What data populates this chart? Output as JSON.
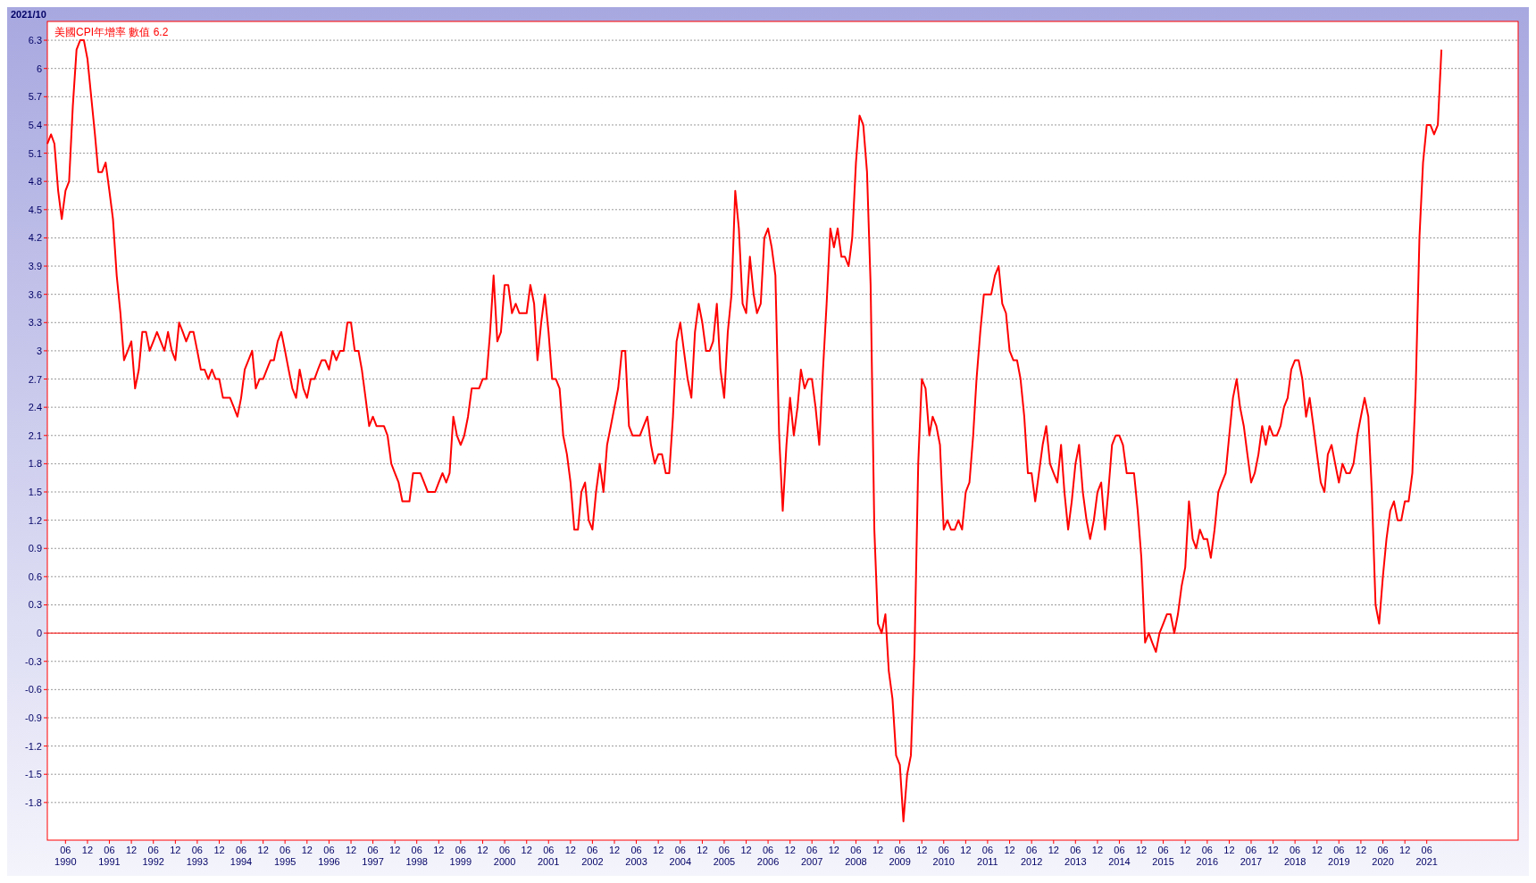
{
  "chart_data": {
    "type": "line",
    "title": "美國CPI年增率 數值 6.2",
    "annotations": [
      "2021/10"
    ],
    "x": [
      "1990-01",
      "1990-02",
      "1990-03",
      "1990-04",
      "1990-05",
      "1990-06",
      "1990-07",
      "1990-08",
      "1990-09",
      "1990-10",
      "1990-11",
      "1990-12",
      "1991-01",
      "1991-02",
      "1991-03",
      "1991-04",
      "1991-05",
      "1991-06",
      "1991-07",
      "1991-08",
      "1991-09",
      "1991-10",
      "1991-11",
      "1991-12",
      "1992-01",
      "1992-02",
      "1992-03",
      "1992-04",
      "1992-05",
      "1992-06",
      "1992-07",
      "1992-08",
      "1992-09",
      "1992-10",
      "1992-11",
      "1992-12",
      "1993-01",
      "1993-02",
      "1993-03",
      "1993-04",
      "1993-05",
      "1993-06",
      "1993-07",
      "1993-08",
      "1993-09",
      "1993-10",
      "1993-11",
      "1993-12",
      "1994-01",
      "1994-02",
      "1994-03",
      "1994-04",
      "1994-05",
      "1994-06",
      "1994-07",
      "1994-08",
      "1994-09",
      "1994-10",
      "1994-11",
      "1994-12",
      "1995-01",
      "1995-02",
      "1995-03",
      "1995-04",
      "1995-05",
      "1995-06",
      "1995-07",
      "1995-08",
      "1995-09",
      "1995-10",
      "1995-11",
      "1995-12",
      "1996-01",
      "1996-02",
      "1996-03",
      "1996-04",
      "1996-05",
      "1996-06",
      "1996-07",
      "1996-08",
      "1996-09",
      "1996-10",
      "1996-11",
      "1996-12",
      "1997-01",
      "1997-02",
      "1997-03",
      "1997-04",
      "1997-05",
      "1997-06",
      "1997-07",
      "1997-08",
      "1997-09",
      "1997-10",
      "1997-11",
      "1997-12",
      "1998-01",
      "1998-02",
      "1998-03",
      "1998-04",
      "1998-05",
      "1998-06",
      "1998-07",
      "1998-08",
      "1998-09",
      "1998-10",
      "1998-11",
      "1998-12",
      "1999-01",
      "1999-02",
      "1999-03",
      "1999-04",
      "1999-05",
      "1999-06",
      "1999-07",
      "1999-08",
      "1999-09",
      "1999-10",
      "1999-11",
      "1999-12",
      "2000-01",
      "2000-02",
      "2000-03",
      "2000-04",
      "2000-05",
      "2000-06",
      "2000-07",
      "2000-08",
      "2000-09",
      "2000-10",
      "2000-11",
      "2000-12",
      "2001-01",
      "2001-02",
      "2001-03",
      "2001-04",
      "2001-05",
      "2001-06",
      "2001-07",
      "2001-08",
      "2001-09",
      "2001-10",
      "2001-11",
      "2001-12",
      "2002-01",
      "2002-02",
      "2002-03",
      "2002-04",
      "2002-05",
      "2002-06",
      "2002-07",
      "2002-08",
      "2002-09",
      "2002-10",
      "2002-11",
      "2002-12",
      "2003-01",
      "2003-02",
      "2003-03",
      "2003-04",
      "2003-05",
      "2003-06",
      "2003-07",
      "2003-08",
      "2003-09",
      "2003-10",
      "2003-11",
      "2003-12",
      "2004-01",
      "2004-02",
      "2004-03",
      "2004-04",
      "2004-05",
      "2004-06",
      "2004-07",
      "2004-08",
      "2004-09",
      "2004-10",
      "2004-11",
      "2004-12",
      "2005-01",
      "2005-02",
      "2005-03",
      "2005-04",
      "2005-05",
      "2005-06",
      "2005-07",
      "2005-08",
      "2005-09",
      "2005-10",
      "2005-11",
      "2005-12",
      "2006-01",
      "2006-02",
      "2006-03",
      "2006-04",
      "2006-05",
      "2006-06",
      "2006-07",
      "2006-08",
      "2006-09",
      "2006-10",
      "2006-11",
      "2006-12",
      "2007-01",
      "2007-02",
      "2007-03",
      "2007-04",
      "2007-05",
      "2007-06",
      "2007-07",
      "2007-08",
      "2007-09",
      "2007-10",
      "2007-11",
      "2007-12",
      "2008-01",
      "2008-02",
      "2008-03",
      "2008-04",
      "2008-05",
      "2008-06",
      "2008-07",
      "2008-08",
      "2008-09",
      "2008-10",
      "2008-11",
      "2008-12",
      "2009-01",
      "2009-02",
      "2009-03",
      "2009-04",
      "2009-05",
      "2009-06",
      "2009-07",
      "2009-08",
      "2009-09",
      "2009-10",
      "2009-11",
      "2009-12",
      "2010-01",
      "2010-02",
      "2010-03",
      "2010-04",
      "2010-05",
      "2010-06",
      "2010-07",
      "2010-08",
      "2010-09",
      "2010-10",
      "2010-11",
      "2010-12",
      "2011-01",
      "2011-02",
      "2011-03",
      "2011-04",
      "2011-05",
      "2011-06",
      "2011-07",
      "2011-08",
      "2011-09",
      "2011-10",
      "2011-11",
      "2011-12",
      "2012-01",
      "2012-02",
      "2012-03",
      "2012-04",
      "2012-05",
      "2012-06",
      "2012-07",
      "2012-08",
      "2012-09",
      "2012-10",
      "2012-11",
      "2012-12",
      "2013-01",
      "2013-02",
      "2013-03",
      "2013-04",
      "2013-05",
      "2013-06",
      "2013-07",
      "2013-08",
      "2013-09",
      "2013-10",
      "2013-11",
      "2013-12",
      "2014-01",
      "2014-02",
      "2014-03",
      "2014-04",
      "2014-05",
      "2014-06",
      "2014-07",
      "2014-08",
      "2014-09",
      "2014-10",
      "2014-11",
      "2014-12",
      "2015-01",
      "2015-02",
      "2015-03",
      "2015-04",
      "2015-05",
      "2015-06",
      "2015-07",
      "2015-08",
      "2015-09",
      "2015-10",
      "2015-11",
      "2015-12",
      "2016-01",
      "2016-02",
      "2016-03",
      "2016-04",
      "2016-05",
      "2016-06",
      "2016-07",
      "2016-08",
      "2016-09",
      "2016-10",
      "2016-11",
      "2016-12",
      "2017-01",
      "2017-02",
      "2017-03",
      "2017-04",
      "2017-05",
      "2017-06",
      "2017-07",
      "2017-08",
      "2017-09",
      "2017-10",
      "2017-11",
      "2017-12",
      "2018-01",
      "2018-02",
      "2018-03",
      "2018-04",
      "2018-05",
      "2018-06",
      "2018-07",
      "2018-08",
      "2018-09",
      "2018-10",
      "2018-11",
      "2018-12",
      "2019-01",
      "2019-02",
      "2019-03",
      "2019-04",
      "2019-05",
      "2019-06",
      "2019-07",
      "2019-08",
      "2019-09",
      "2019-10",
      "2019-11",
      "2019-12",
      "2020-01",
      "2020-02",
      "2020-03",
      "2020-04",
      "2020-05",
      "2020-06",
      "2020-07",
      "2020-08",
      "2020-09",
      "2020-10",
      "2020-11",
      "2020-12",
      "2021-01",
      "2021-02",
      "2021-03",
      "2021-04",
      "2021-05",
      "2021-06",
      "2021-07",
      "2021-08",
      "2021-09",
      "2021-10"
    ],
    "series": [
      {
        "color": "#ff0000",
        "values": [
          5.2,
          5.3,
          5.2,
          4.7,
          4.4,
          4.7,
          4.8,
          5.6,
          6.2,
          6.3,
          6.3,
          6.1,
          5.7,
          5.3,
          4.9,
          4.9,
          5.0,
          4.7,
          4.4,
          3.8,
          3.4,
          2.9,
          3.0,
          3.1,
          2.6,
          2.8,
          3.2,
          3.2,
          3.0,
          3.1,
          3.2,
          3.1,
          3.0,
          3.2,
          3.0,
          2.9,
          3.3,
          3.2,
          3.1,
          3.2,
          3.2,
          3.0,
          2.8,
          2.8,
          2.7,
          2.8,
          2.7,
          2.7,
          2.5,
          2.5,
          2.5,
          2.4,
          2.3,
          2.5,
          2.8,
          2.9,
          3.0,
          2.6,
          2.7,
          2.7,
          2.8,
          2.9,
          2.9,
          3.1,
          3.2,
          3.0,
          2.8,
          2.6,
          2.5,
          2.8,
          2.6,
          2.5,
          2.7,
          2.7,
          2.8,
          2.9,
          2.9,
          2.8,
          3.0,
          2.9,
          3.0,
          3.0,
          3.3,
          3.3,
          3.0,
          3.0,
          2.8,
          2.5,
          2.2,
          2.3,
          2.2,
          2.2,
          2.2,
          2.1,
          1.8,
          1.7,
          1.6,
          1.4,
          1.4,
          1.4,
          1.7,
          1.7,
          1.7,
          1.6,
          1.5,
          1.5,
          1.5,
          1.6,
          1.7,
          1.6,
          1.7,
          2.3,
          2.1,
          2.0,
          2.1,
          2.3,
          2.6,
          2.6,
          2.6,
          2.7,
          2.7,
          3.2,
          3.8,
          3.1,
          3.2,
          3.7,
          3.7,
          3.4,
          3.5,
          3.4,
          3.4,
          3.4,
          3.7,
          3.5,
          2.9,
          3.3,
          3.6,
          3.2,
          2.7,
          2.7,
          2.6,
          2.1,
          1.9,
          1.6,
          1.1,
          1.1,
          1.5,
          1.6,
          1.2,
          1.1,
          1.5,
          1.8,
          1.5,
          2.0,
          2.2,
          2.4,
          2.6,
          3.0,
          3.0,
          2.2,
          2.1,
          2.1,
          2.1,
          2.2,
          2.3,
          2.0,
          1.8,
          1.9,
          1.9,
          1.7,
          1.7,
          2.3,
          3.1,
          3.3,
          3.0,
          2.7,
          2.5,
          3.2,
          3.5,
          3.3,
          3.0,
          3.0,
          3.1,
          3.5,
          2.8,
          2.5,
          3.2,
          3.6,
          4.7,
          4.3,
          3.5,
          3.4,
          4.0,
          3.6,
          3.4,
          3.5,
          4.2,
          4.3,
          4.1,
          3.8,
          2.1,
          1.3,
          2.0,
          2.5,
          2.1,
          2.4,
          2.8,
          2.6,
          2.7,
          2.7,
          2.4,
          2.0,
          2.8,
          3.5,
          4.3,
          4.1,
          4.3,
          4.0,
          4.0,
          3.9,
          4.2,
          5.0,
          5.5,
          5.4,
          4.9,
          3.7,
          1.1,
          0.1,
          0.0,
          0.2,
          -0.4,
          -0.7,
          -1.3,
          -1.4,
          -2.0,
          -1.5,
          -1.3,
          -0.2,
          1.8,
          2.7,
          2.6,
          2.1,
          2.3,
          2.2,
          2.0,
          1.1,
          1.2,
          1.1,
          1.1,
          1.2,
          1.1,
          1.5,
          1.6,
          2.1,
          2.7,
          3.2,
          3.6,
          3.6,
          3.6,
          3.8,
          3.9,
          3.5,
          3.4,
          3.0,
          2.9,
          2.9,
          2.7,
          2.3,
          1.7,
          1.7,
          1.4,
          1.7,
          2.0,
          2.2,
          1.8,
          1.7,
          1.6,
          2.0,
          1.5,
          1.1,
          1.4,
          1.8,
          2.0,
          1.5,
          1.2,
          1.0,
          1.2,
          1.5,
          1.6,
          1.1,
          1.5,
          2.0,
          2.1,
          2.1,
          2.0,
          1.7,
          1.7,
          1.7,
          1.3,
          0.8,
          -0.1,
          0.0,
          -0.1,
          -0.2,
          0.0,
          0.1,
          0.2,
          0.2,
          0.0,
          0.2,
          0.5,
          0.7,
          1.4,
          1.0,
          0.9,
          1.1,
          1.0,
          1.0,
          0.8,
          1.1,
          1.5,
          1.6,
          1.7,
          2.1,
          2.5,
          2.7,
          2.4,
          2.2,
          1.9,
          1.6,
          1.7,
          1.9,
          2.2,
          2.0,
          2.2,
          2.1,
          2.1,
          2.2,
          2.4,
          2.5,
          2.8,
          2.9,
          2.9,
          2.7,
          2.3,
          2.5,
          2.2,
          1.9,
          1.6,
          1.5,
          1.9,
          2.0,
          1.8,
          1.6,
          1.8,
          1.7,
          1.7,
          1.8,
          2.1,
          2.3,
          2.5,
          2.3,
          1.5,
          0.3,
          0.1,
          0.6,
          1.0,
          1.3,
          1.4,
          1.2,
          1.2,
          1.4,
          1.4,
          1.7,
          2.6,
          4.2,
          5.0,
          5.4,
          5.4,
          5.3,
          5.4,
          6.2
        ]
      }
    ],
    "xlim": [
      "1990-01",
      "2023-07"
    ],
    "xticks": [
      {
        "value": "1990-06",
        "label": "06\n1990"
      },
      {
        "value": "1990-12",
        "label": "12"
      },
      {
        "value": "1991-06",
        "label": "06\n1991"
      },
      {
        "value": "1991-12",
        "label": "12"
      },
      {
        "value": "1992-06",
        "label": "06\n1992"
      },
      {
        "value": "1992-12",
        "label": "12"
      },
      {
        "value": "1993-06",
        "label": "06\n1993"
      },
      {
        "value": "1993-12",
        "label": "12"
      },
      {
        "value": "1994-06",
        "label": "06\n1994"
      },
      {
        "value": "1994-12",
        "label": "12"
      },
      {
        "value": "1995-06",
        "label": "06\n1995"
      },
      {
        "value": "1995-12",
        "label": "12"
      },
      {
        "value": "1996-06",
        "label": "06\n1996"
      },
      {
        "value": "1996-12",
        "label": "12"
      },
      {
        "value": "1997-06",
        "label": "06\n1997"
      },
      {
        "value": "1997-12",
        "label": "12"
      },
      {
        "value": "1998-06",
        "label": "06\n1998"
      },
      {
        "value": "1998-12",
        "label": "12"
      },
      {
        "value": "1999-06",
        "label": "06\n1999"
      },
      {
        "value": "1999-12",
        "label": "12"
      },
      {
        "value": "2000-06",
        "label": "06\n2000"
      },
      {
        "value": "2000-12",
        "label": "12"
      },
      {
        "value": "2001-06",
        "label": "06\n2001"
      },
      {
        "value": "2001-12",
        "label": "12"
      },
      {
        "value": "2002-06",
        "label": "06\n2002"
      },
      {
        "value": "2002-12",
        "label": "12"
      },
      {
        "value": "2003-06",
        "label": "06\n2003"
      },
      {
        "value": "2003-12",
        "label": "12"
      },
      {
        "value": "2004-06",
        "label": "06\n2004"
      },
      {
        "value": "2004-12",
        "label": "12"
      },
      {
        "value": "2005-06",
        "label": "06\n2005"
      },
      {
        "value": "2005-12",
        "label": "12"
      },
      {
        "value": "2006-06",
        "label": "06\n2006"
      },
      {
        "value": "2006-12",
        "label": "12"
      },
      {
        "value": "2007-06",
        "label": "06\n2007"
      },
      {
        "value": "2007-12",
        "label": "12"
      },
      {
        "value": "2008-06",
        "label": "06\n2008"
      },
      {
        "value": "2008-12",
        "label": "12"
      },
      {
        "value": "2009-06",
        "label": "06\n2009"
      },
      {
        "value": "2009-12",
        "label": "12"
      },
      {
        "value": "2010-06",
        "label": "06\n2010"
      },
      {
        "value": "2010-12",
        "label": "12"
      },
      {
        "value": "2011-06",
        "label": "06\n2011"
      },
      {
        "value": "2011-12",
        "label": "12"
      },
      {
        "value": "2012-06",
        "label": "06\n2012"
      },
      {
        "value": "2012-12",
        "label": "12"
      },
      {
        "value": "2013-06",
        "label": "06\n2013"
      },
      {
        "value": "2013-12",
        "label": "12"
      },
      {
        "value": "2014-06",
        "label": "06\n2014"
      },
      {
        "value": "2014-12",
        "label": "12"
      },
      {
        "value": "2015-06",
        "label": "06\n2015"
      },
      {
        "value": "2015-12",
        "label": "12"
      },
      {
        "value": "2016-06",
        "label": "06\n2016"
      },
      {
        "value": "2016-12",
        "label": "12"
      },
      {
        "value": "2017-06",
        "label": "06\n2017"
      },
      {
        "value": "2017-12",
        "label": "12"
      },
      {
        "value": "2018-06",
        "label": "06\n2018"
      },
      {
        "value": "2018-12",
        "label": "12"
      },
      {
        "value": "2019-06",
        "label": "06\n2019"
      },
      {
        "value": "2019-12",
        "label": "12"
      },
      {
        "value": "2020-06",
        "label": "06\n2020"
      },
      {
        "value": "2020-12",
        "label": "12"
      },
      {
        "value": "2021-06",
        "label": "06\n2021"
      }
    ],
    "ylim": [
      -2.2,
      6.5
    ],
    "yticks": [
      -1.8,
      -1.5,
      -1.2,
      -0.9,
      -0.6,
      -0.3,
      0,
      0.3,
      0.6,
      0.9,
      1.2,
      1.5,
      1.8,
      2.1,
      2.4,
      2.7,
      3,
      3.3,
      3.6,
      3.9,
      4.2,
      4.5,
      4.8,
      5.1,
      5.4,
      5.7,
      6,
      6.3
    ],
    "ref_lines": [
      {
        "axis": "y",
        "value": 0,
        "color": "#ff0000"
      }
    ],
    "grid": "y",
    "marker": "none",
    "line_style": "solid"
  }
}
